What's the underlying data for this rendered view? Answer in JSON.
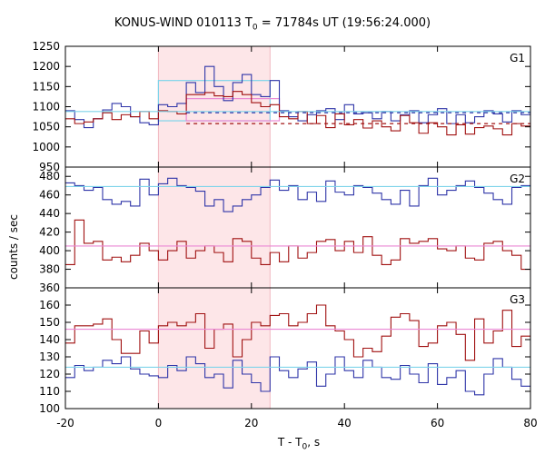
{
  "figure": {
    "title_prefix": "KONUS-WIND 010113 T",
    "title_sub": "0",
    "title_suffix": " = 71784s UT (19:56:24.000)",
    "ylabel": "counts / sec",
    "xlabel_prefix": "T - T",
    "xlabel_sub": "0",
    "xlabel_suffix": ", s"
  },
  "colors": {
    "blue": "#2f35a8",
    "red": "#a01010",
    "cyan": "#7fd4ea",
    "pink": "#ea88d4",
    "shade": "#fde6e8",
    "shade_edge": "#f0b8c0"
  },
  "chart_data": [
    {
      "type": "line",
      "panel": "G1",
      "x_edges": [
        -20,
        -18,
        -16,
        -14,
        -12,
        -10,
        -8,
        -6,
        -4,
        -2,
        0,
        2,
        4,
        6,
        8,
        10,
        12,
        14,
        16,
        18,
        20,
        22,
        24,
        26,
        28,
        30,
        32,
        34,
        36,
        38,
        40,
        42,
        44,
        46,
        48,
        50,
        52,
        54,
        56,
        58,
        60,
        62,
        64,
        66,
        68,
        70,
        72,
        74,
        76,
        78,
        80
      ],
      "series": [
        {
          "color": "blue",
          "values": [
            1090,
            1068,
            1048,
            1070,
            1092,
            1108,
            1100,
            1075,
            1060,
            1055,
            1105,
            1100,
            1108,
            1160,
            1135,
            1200,
            1150,
            1115,
            1160,
            1180,
            1130,
            1125,
            1165,
            1090,
            1075,
            1065,
            1080,
            1090,
            1095,
            1068,
            1105,
            1082,
            1085,
            1070,
            1088,
            1065,
            1080,
            1090,
            1060,
            1080,
            1095,
            1058,
            1080,
            1060,
            1075,
            1090,
            1082,
            1062,
            1090,
            1080
          ]
        },
        {
          "color": "red",
          "values": [
            1070,
            1058,
            1062,
            1070,
            1085,
            1068,
            1080,
            1075,
            1088,
            1070,
            1090,
            1088,
            1082,
            1130,
            1130,
            1135,
            1127,
            1125,
            1138,
            1130,
            1110,
            1100,
            1105,
            1075,
            1070,
            1088,
            1058,
            1078,
            1048,
            1082,
            1055,
            1068,
            1047,
            1065,
            1050,
            1040,
            1078,
            1060,
            1034,
            1060,
            1050,
            1030,
            1055,
            1032,
            1048,
            1052,
            1045,
            1030,
            1058,
            1052
          ]
        }
      ],
      "fits": [
        {
          "color": "cyan",
          "style": "solid",
          "x": [
            -20,
            80
          ],
          "y": [
            1088,
            1088
          ]
        },
        {
          "color": "blue",
          "style": "dashed",
          "x": [
            6,
            80
          ],
          "y": [
            1085,
            1085
          ]
        },
        {
          "color": "red",
          "style": "dashed",
          "x": [
            6,
            80
          ],
          "y": [
            1058,
            1058
          ]
        }
      ],
      "boxes": [
        {
          "color": "cyan",
          "x": [
            0,
            24
          ],
          "y": [
            1065,
            1165
          ]
        },
        {
          "color": "pink",
          "x": [
            6,
            26
          ],
          "y": [
            1065,
            1120
          ]
        }
      ],
      "ylim": [
        950,
        1250
      ],
      "yticks": [
        950,
        1000,
        1050,
        1100,
        1150,
        1200,
        1250
      ],
      "ytick_labels": [
        "950",
        "1000",
        "1050",
        "1100",
        "1150",
        "1200",
        "1250"
      ]
    },
    {
      "type": "line",
      "panel": "G2",
      "x_edges": [
        -20,
        -18,
        -16,
        -14,
        -12,
        -10,
        -8,
        -6,
        -4,
        -2,
        0,
        2,
        4,
        6,
        8,
        10,
        12,
        14,
        16,
        18,
        20,
        22,
        24,
        26,
        28,
        30,
        32,
        34,
        36,
        38,
        40,
        42,
        44,
        46,
        48,
        50,
        52,
        54,
        56,
        58,
        60,
        62,
        64,
        66,
        68,
        70,
        72,
        74,
        76,
        78,
        80
      ],
      "series": [
        {
          "color": "blue",
          "values": [
            473,
            470,
            465,
            468,
            455,
            450,
            453,
            448,
            477,
            460,
            472,
            478,
            470,
            468,
            464,
            448,
            455,
            442,
            448,
            455,
            460,
            468,
            476,
            465,
            470,
            455,
            463,
            453,
            475,
            463,
            460,
            470,
            468,
            462,
            455,
            450,
            465,
            448,
            470,
            478,
            460,
            465,
            470,
            475,
            468,
            462,
            455,
            450,
            468,
            470
          ]
        },
        {
          "color": "red",
          "values": [
            385,
            433,
            408,
            410,
            390,
            393,
            388,
            395,
            408,
            400,
            390,
            400,
            410,
            392,
            400,
            405,
            398,
            388,
            413,
            410,
            392,
            385,
            398,
            388,
            405,
            392,
            398,
            410,
            412,
            400,
            410,
            398,
            415,
            395,
            385,
            390,
            413,
            408,
            410,
            413,
            402,
            400,
            405,
            392,
            390,
            408,
            410,
            400,
            395,
            380
          ]
        }
      ],
      "fits": [
        {
          "color": "cyan",
          "style": "solid",
          "x": [
            -20,
            80
          ],
          "y": [
            469,
            469
          ]
        },
        {
          "color": "pink",
          "style": "solid",
          "x": [
            -20,
            80
          ],
          "y": [
            405,
            405
          ]
        }
      ],
      "ylim": [
        360,
        490
      ],
      "yticks": [
        360,
        380,
        400,
        420,
        440,
        460,
        480
      ],
      "ytick_labels": [
        "360",
        "380",
        "400",
        "420",
        "440",
        "460",
        "480"
      ]
    },
    {
      "type": "line",
      "panel": "G3",
      "x_edges": [
        -20,
        -18,
        -16,
        -14,
        -12,
        -10,
        -8,
        -6,
        -4,
        -2,
        0,
        2,
        4,
        6,
        8,
        10,
        12,
        14,
        16,
        18,
        20,
        22,
        24,
        26,
        28,
        30,
        32,
        34,
        36,
        38,
        40,
        42,
        44,
        46,
        48,
        50,
        52,
        54,
        56,
        58,
        60,
        62,
        64,
        66,
        68,
        70,
        72,
        74,
        76,
        78,
        80
      ],
      "series": [
        {
          "color": "blue",
          "values": [
            118,
            125,
            122,
            124,
            128,
            126,
            130,
            123,
            120,
            119,
            118,
            125,
            122,
            130,
            126,
            118,
            120,
            112,
            128,
            120,
            115,
            110,
            130,
            122,
            118,
            123,
            127,
            113,
            120,
            130,
            122,
            118,
            128,
            124,
            118,
            117,
            125,
            120,
            115,
            126,
            114,
            118,
            122,
            110,
            108,
            120,
            129,
            124,
            117,
            113
          ]
        },
        {
          "color": "red",
          "values": [
            138,
            148,
            148,
            149,
            152,
            140,
            132,
            132,
            145,
            138,
            148,
            150,
            148,
            150,
            155,
            135,
            146,
            149,
            130,
            140,
            150,
            148,
            154,
            155,
            148,
            150,
            155,
            160,
            148,
            145,
            140,
            130,
            135,
            133,
            142,
            153,
            155,
            151,
            136,
            138,
            148,
            150,
            143,
            128,
            152,
            138,
            145,
            157,
            136,
            142
          ]
        }
      ],
      "fits": [
        {
          "color": "pink",
          "style": "solid",
          "x": [
            -20,
            80
          ],
          "y": [
            146,
            146
          ]
        },
        {
          "color": "cyan",
          "style": "solid",
          "x": [
            -20,
            80
          ],
          "y": [
            124,
            124
          ]
        }
      ],
      "ylim": [
        100,
        170
      ],
      "yticks": [
        100,
        110,
        120,
        130,
        140,
        150,
        160
      ],
      "ytick_labels": [
        "100",
        "110",
        "120",
        "130",
        "140",
        "150",
        "160"
      ]
    }
  ],
  "xaxis": {
    "xlim": [
      -20,
      80
    ],
    "xticks": [
      -20,
      0,
      20,
      40,
      60,
      80
    ],
    "xtick_labels": [
      "-20",
      "0",
      "20",
      "40",
      "60",
      "80"
    ]
  },
  "shaded_interval": [
    0,
    24
  ]
}
